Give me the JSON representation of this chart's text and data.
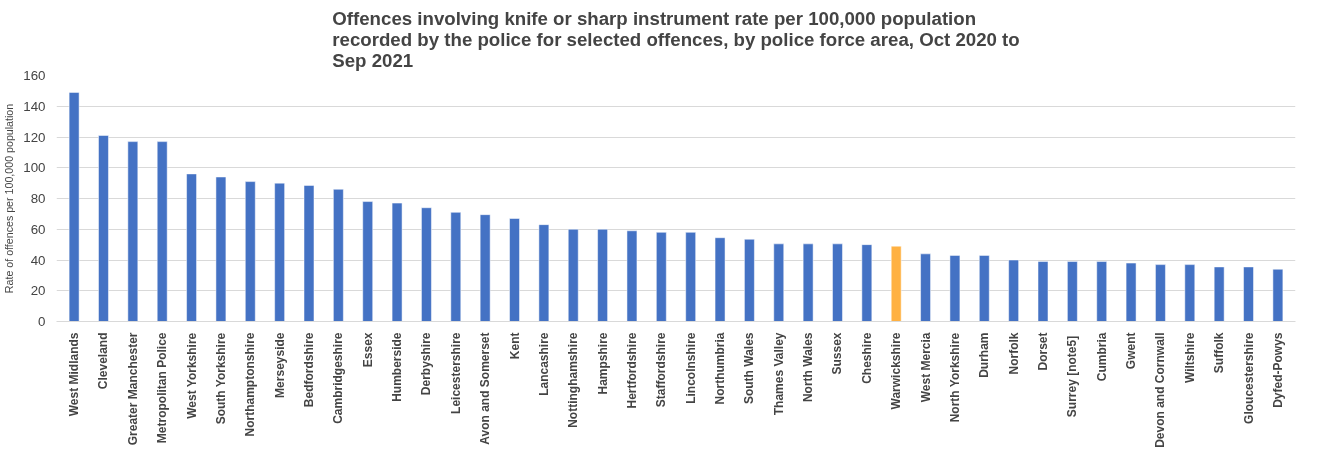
{
  "chart_data": {
    "type": "bar",
    "title": "Offences involving knife or sharp instrument rate per 100,000 population recorded by the police for selected offences, by police force area, Oct 2020 to Sep 2021",
    "ylabel": "Rate of offences per 100,000 population",
    "categories": [
      "West Midlands",
      "Cleveland",
      "Greater Manchester",
      "Metropolitan Police",
      "West Yorkshire",
      "South Yorkshire",
      "Northamptonshire",
      "Merseyside",
      "Bedfordshire",
      "Cambridgeshire",
      "Essex",
      "Humberside",
      "Derbyshire",
      "Leicestershire",
      "Avon and Somerset",
      "Kent",
      "Lancashire",
      "Nottinghamshire",
      "Hampshire",
      "Hertfordshire",
      "Staffordshire",
      "Lincolnshire",
      "Northumbria",
      "South Wales",
      "Thames Valley",
      "North Wales",
      "Sussex",
      "Cheshire",
      "Warwickshire",
      "West Mercia",
      "North Yorkshire",
      "Durham",
      "Norfolk",
      "Dorset",
      "Surrey  [note5]",
      "Cumbria",
      "Gwent",
      "Devon and Cornwall",
      "Wiltshire",
      "Suffolk",
      "Gloucestershire",
      "Dyfed-Powys"
    ],
    "values": [
      149,
      121,
      117,
      117,
      96,
      94,
      91,
      90,
      88.5,
      86,
      78,
      77,
      74,
      71,
      69.5,
      67,
      63,
      60,
      60,
      59,
      58,
      58,
      54.5,
      53.5,
      50.5,
      50.5,
      50.5,
      50,
      49,
      44,
      43,
      43,
      40,
      39,
      39,
      39,
      38,
      37,
      37,
      35.5,
      35.5,
      34
    ],
    "colors": [
      "#4472c4",
      "#4472c4",
      "#4472c4",
      "#4472c4",
      "#4472c4",
      "#4472c4",
      "#4472c4",
      "#4472c4",
      "#4472c4",
      "#4472c4",
      "#4472c4",
      "#4472c4",
      "#4472c4",
      "#4472c4",
      "#4472c4",
      "#4472c4",
      "#4472c4",
      "#4472c4",
      "#4472c4",
      "#4472c4",
      "#4472c4",
      "#4472c4",
      "#4472c4",
      "#4472c4",
      "#4472c4",
      "#4472c4",
      "#4472c4",
      "#4472c4",
      "#ffb142",
      "#4472c4",
      "#4472c4",
      "#4472c4",
      "#4472c4",
      "#4472c4",
      "#4472c4",
      "#4472c4",
      "#4472c4",
      "#4472c4",
      "#4472c4",
      "#4472c4",
      "#4472c4",
      "#4472c4"
    ],
    "ylim": [
      0,
      160
    ],
    "yticks": [
      0,
      20,
      40,
      60,
      80,
      100,
      120,
      140,
      160
    ],
    "grid": "y"
  }
}
